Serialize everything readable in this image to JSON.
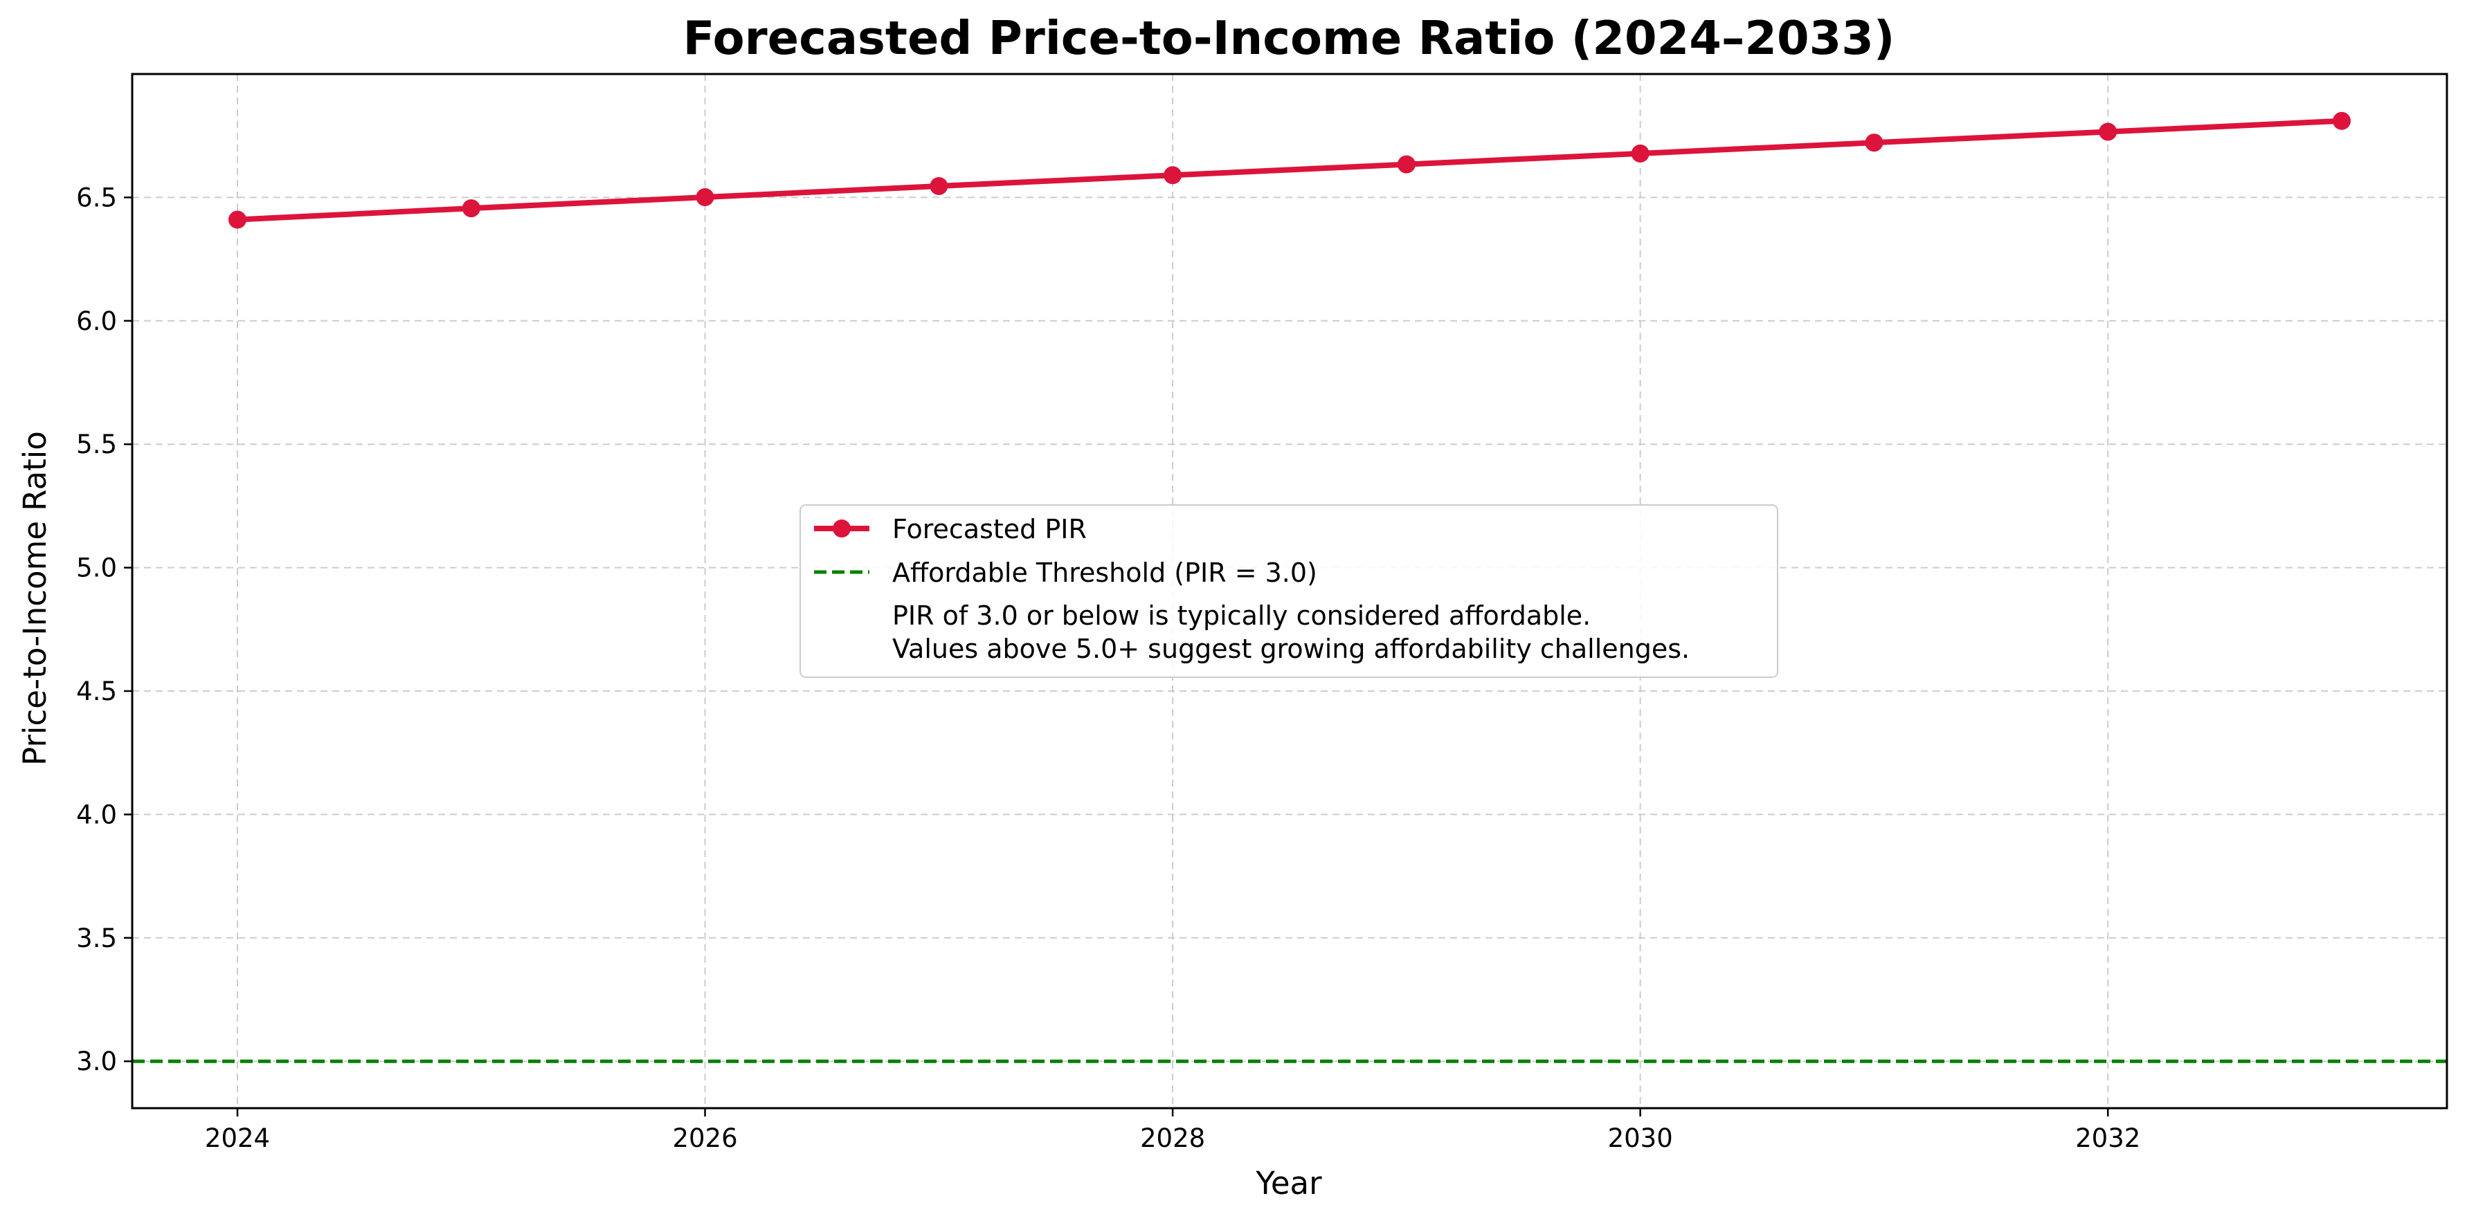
{
  "chart_data": {
    "type": "line",
    "title": "Forecasted Price-to-Income Ratio (2024–2033)",
    "xlabel": "Year",
    "ylabel": "Price-to-Income Ratio",
    "x": [
      2024,
      2025,
      2026,
      2027,
      2028,
      2029,
      2030,
      2031,
      2032,
      2033
    ],
    "xlim": [
      2023.55,
      2033.45
    ],
    "ylim": [
      2.81,
      7.0
    ],
    "xticks": [
      2024,
      2026,
      2028,
      2030,
      2032
    ],
    "yticks": [
      3.0,
      3.5,
      4.0,
      4.5,
      5.0,
      5.5,
      6.0,
      6.5
    ],
    "ytick_labels": [
      "3.0",
      "3.5",
      "4.0",
      "4.5",
      "5.0",
      "5.5",
      "6.0",
      "6.5"
    ],
    "grid": true,
    "series": [
      {
        "name": "Forecasted PIR",
        "color": "#dc143c",
        "marker": "circle",
        "values": [
          6.41,
          6.456,
          6.501,
          6.546,
          6.59,
          6.634,
          6.678,
          6.722,
          6.766,
          6.81
        ]
      }
    ],
    "hlines": [
      {
        "name": "Affordable Threshold (PIR = 3.0)",
        "y": 3.0,
        "color": "#008000",
        "style": "dashed"
      }
    ],
    "legend": {
      "position": "center",
      "entries": [
        "Forecasted PIR",
        "Affordable Threshold (PIR = 3.0)"
      ],
      "note_lines": [
        "PIR of 3.0 or below is typically considered affordable.",
        "Values above 5.0+ suggest growing affordability challenges."
      ]
    }
  }
}
